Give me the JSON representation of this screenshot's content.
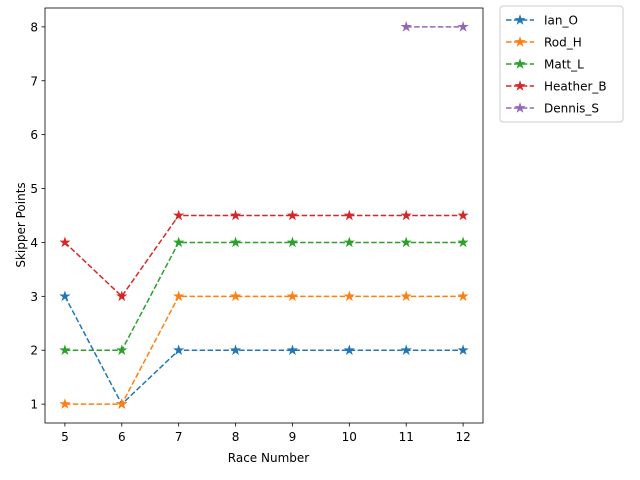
{
  "chart_data": {
    "type": "line",
    "title": "",
    "xlabel": "Race Number",
    "ylabel": "Skipper Points",
    "x": [
      5,
      6,
      7,
      8,
      9,
      10,
      11,
      12
    ],
    "xlim": [
      4.65,
      12.35
    ],
    "ylim": [
      0.65,
      8.35
    ],
    "xticks": [
      5,
      6,
      7,
      8,
      9,
      10,
      11,
      12
    ],
    "yticks": [
      1,
      2,
      3,
      4,
      5,
      6,
      7,
      8
    ],
    "grid": false,
    "legend_position": "outside-top-right",
    "line_style": "dashed",
    "marker": "star",
    "series": [
      {
        "name": "Ian_O",
        "color": "#1f77b4",
        "x": [
          5,
          6,
          7,
          8,
          9,
          10,
          11,
          12
        ],
        "values": [
          3,
          1,
          2,
          2,
          2,
          2,
          2,
          2
        ]
      },
      {
        "name": "Rod_H",
        "color": "#ff7f0e",
        "x": [
          5,
          6,
          7,
          8,
          9,
          10,
          11,
          12
        ],
        "values": [
          1,
          1,
          3,
          3,
          3,
          3,
          3,
          3
        ]
      },
      {
        "name": "Matt_L",
        "color": "#2ca02c",
        "x": [
          5,
          6,
          7,
          8,
          9,
          10,
          11,
          12
        ],
        "values": [
          2,
          2,
          4,
          4,
          4,
          4,
          4,
          4
        ]
      },
      {
        "name": "Heather_B",
        "color": "#d62728",
        "x": [
          5,
          6,
          7,
          8,
          9,
          10,
          11,
          12
        ],
        "values": [
          4,
          3,
          4.5,
          4.5,
          4.5,
          4.5,
          4.5,
          4.5
        ]
      },
      {
        "name": "Dennis_S",
        "color": "#9467bd",
        "x": [
          11,
          12
        ],
        "values": [
          8,
          8
        ]
      }
    ]
  }
}
